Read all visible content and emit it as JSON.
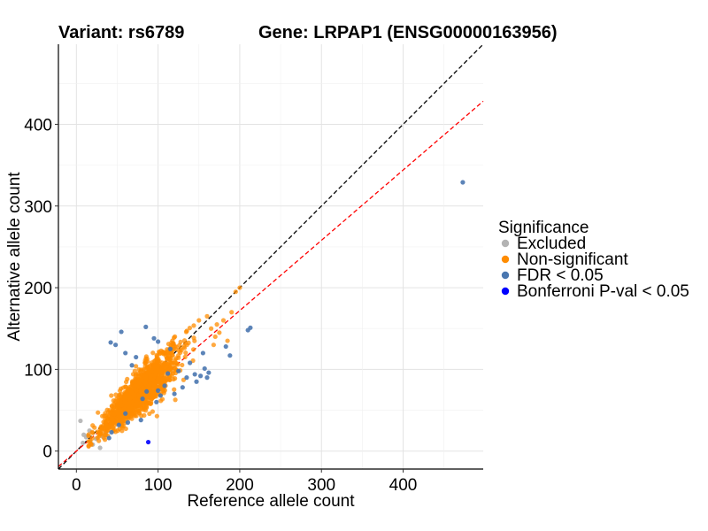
{
  "chart_data": {
    "type": "scatter",
    "title_left": "Variant: rs6789",
    "title_right": "Gene: LRPAP1 (ENSG00000163956)",
    "xlabel": "Reference allele count",
    "ylabel": "Alternative allele count",
    "xlim": [
      -22,
      498
    ],
    "ylim": [
      -22,
      498
    ],
    "xticks": [
      0,
      100,
      200,
      300,
      400
    ],
    "yticks": [
      0,
      100,
      200,
      300,
      400
    ],
    "grid": true,
    "legend": {
      "title": "Significance",
      "position": "right",
      "entries": [
        {
          "label": "Excluded",
          "color": "#b3b3b3"
        },
        {
          "label": "Non-significant",
          "color": "#ff8c00"
        },
        {
          "label": "FDR < 0.05",
          "color": "#4a77b0"
        },
        {
          "label": "Bonferroni P-val < 0.05",
          "color": "#0000ff"
        }
      ]
    },
    "reference_lines": [
      {
        "name": "y = x",
        "slope": 1.0,
        "intercept": 0,
        "color": "#000000",
        "dash": true
      },
      {
        "name": "fit",
        "slope": 0.86,
        "intercept": 0,
        "color": "#ff0000",
        "dash": true
      }
    ],
    "series": [
      {
        "name": "Excluded",
        "color": "#b3b3b3",
        "points": [
          [
            5,
            37
          ],
          [
            8,
            10
          ],
          [
            12,
            17
          ],
          [
            14,
            19
          ],
          [
            17,
            12
          ],
          [
            24,
            15
          ],
          [
            29,
            4
          ],
          [
            32,
            18
          ],
          [
            36,
            22
          ],
          [
            16,
            25
          ],
          [
            20,
            8
          ],
          [
            9,
            20
          ]
        ]
      },
      {
        "name": "Non-significant",
        "color": "#ff8c00",
        "generated": {
          "count": 1400,
          "x_mean": 78,
          "x_sd": 22,
          "x_min": 15,
          "x_max": 170,
          "y_ratio": 0.93,
          "y_sd": 12
        },
        "points": [
          [
            150,
            160
          ],
          [
            160,
            165
          ],
          [
            165,
            150
          ],
          [
            170,
            140
          ],
          [
            175,
            145
          ],
          [
            180,
            160
          ],
          [
            190,
            170
          ],
          [
            195,
            195
          ],
          [
            185,
            135
          ],
          [
            200,
            200
          ],
          [
            168,
            130
          ],
          [
            172,
            155
          ]
        ]
      },
      {
        "name": "FDR < 0.05",
        "color": "#4a77b0",
        "points": [
          [
            473,
            329
          ],
          [
            213,
            151
          ],
          [
            210,
            148
          ],
          [
            183,
            128
          ],
          [
            188,
            117
          ],
          [
            157,
            101
          ],
          [
            152,
            92
          ],
          [
            162,
            96
          ],
          [
            160,
            90
          ],
          [
            139,
            108
          ],
          [
            155,
            120
          ],
          [
            147,
            85
          ],
          [
            108,
            80
          ],
          [
            103,
            68
          ],
          [
            100,
            74
          ],
          [
            98,
            60
          ],
          [
            86,
            73
          ],
          [
            81,
            64
          ],
          [
            79,
            38
          ],
          [
            63,
            35
          ],
          [
            52,
            32
          ],
          [
            43,
            23
          ],
          [
            40,
            16
          ],
          [
            48,
            130
          ],
          [
            42,
            133
          ],
          [
            55,
            146
          ],
          [
            85,
            152
          ],
          [
            95,
            138
          ],
          [
            100,
            134
          ],
          [
            115,
            125
          ],
          [
            135,
            90
          ],
          [
            125,
            98
          ],
          [
            112,
            95
          ],
          [
            60,
            120
          ],
          [
            68,
            105
          ],
          [
            73,
            115
          ],
          [
            130,
            78
          ],
          [
            145,
            94
          ],
          [
            120,
            70
          ],
          [
            60,
            46
          ]
        ]
      },
      {
        "name": "Bonferroni P-val < 0.05",
        "color": "#0000ff",
        "points": [
          [
            88,
            11
          ]
        ]
      }
    ]
  }
}
